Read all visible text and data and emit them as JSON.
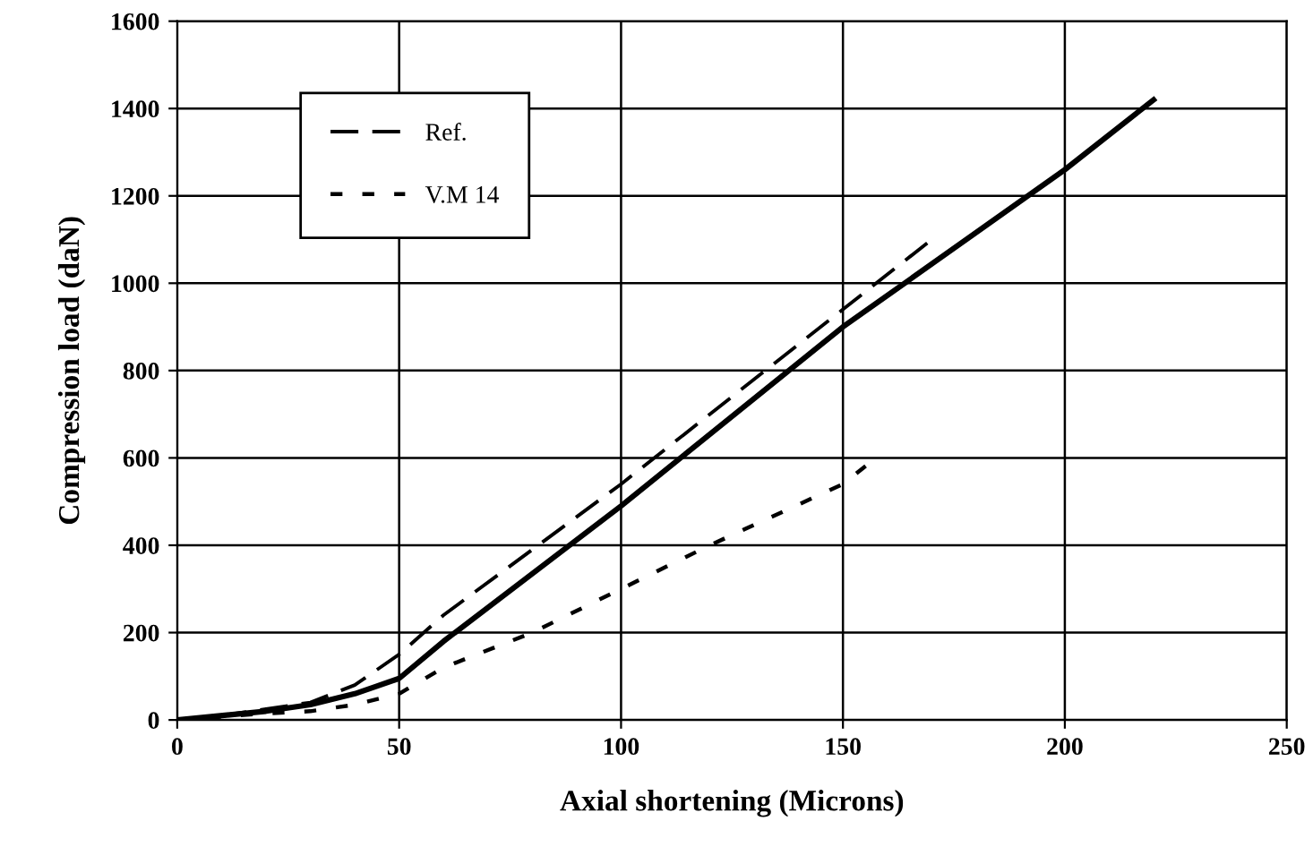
{
  "chart_data": {
    "type": "line",
    "xlabel": "Axial shortening (Microns)",
    "ylabel": "Compression load (daN)",
    "xlim": [
      0,
      250
    ],
    "xticks": [
      0,
      50,
      100,
      150,
      200,
      250
    ],
    "ylim": [
      0,
      1600
    ],
    "yticks": [
      0,
      200,
      400,
      600,
      800,
      1000,
      1200,
      1400,
      1600
    ],
    "grid": true,
    "legend": "top left",
    "series": [
      {
        "name": "Ref.",
        "color": "#000000",
        "line_style": "dashed",
        "x": [
          0,
          10,
          20,
          30,
          40,
          50,
          60,
          100,
          150,
          170
        ],
        "values": [
          0,
          10,
          25,
          40,
          80,
          150,
          240,
          540,
          940,
          1100
        ]
      },
      {
        "color": "#000000",
        "line_style": "solid",
        "x": [
          0,
          20,
          30,
          40,
          50,
          60,
          100,
          150,
          200,
          220
        ],
        "values": [
          0,
          20,
          35,
          60,
          95,
          180,
          490,
          900,
          1260,
          1420
        ]
      },
      {
        "name": "V.M 14",
        "color": "#000000",
        "line_style": "dotted",
        "x": [
          0,
          20,
          30,
          40,
          50,
          60,
          80,
          100,
          120,
          150,
          158
        ],
        "values": [
          0,
          15,
          20,
          35,
          60,
          120,
          200,
          300,
          400,
          540,
          605
        ]
      }
    ]
  }
}
